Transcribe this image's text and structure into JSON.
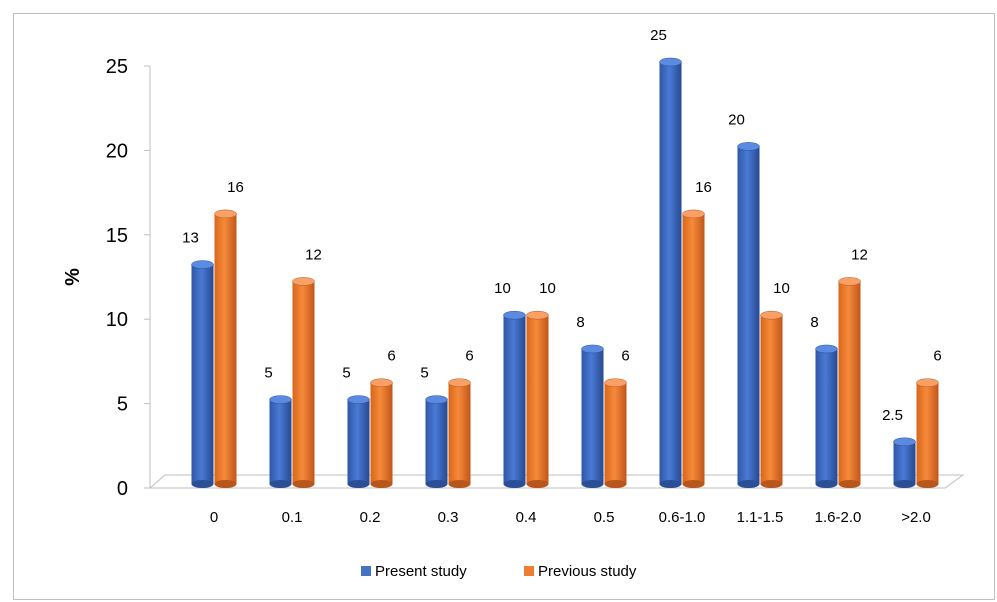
{
  "chart_data": {
    "type": "bar",
    "title": "",
    "xlabel": "",
    "ylabel": "%",
    "ylim": [
      0,
      25
    ],
    "yticks": [
      "0",
      "5",
      "10",
      "15",
      "20",
      "25"
    ],
    "categories": [
      "0",
      "0.1",
      "0.2",
      "0.3",
      "0.4",
      "0.5",
      "0.6-1.0",
      "1.1-1.5",
      "1.6-2.0",
      ">2.0"
    ],
    "series": [
      {
        "name": "Present study",
        "color": "#4472C4",
        "values": [
          13,
          5,
          5,
          5,
          10,
          8,
          25,
          20,
          8,
          2.5
        ]
      },
      {
        "name": "Previous study",
        "color": "#ED7D31",
        "values": [
          16,
          12,
          6,
          6,
          10,
          6,
          16,
          10,
          12,
          6
        ]
      }
    ],
    "grid": false,
    "legend_position": "bottom",
    "style": "3d-cylinder"
  }
}
